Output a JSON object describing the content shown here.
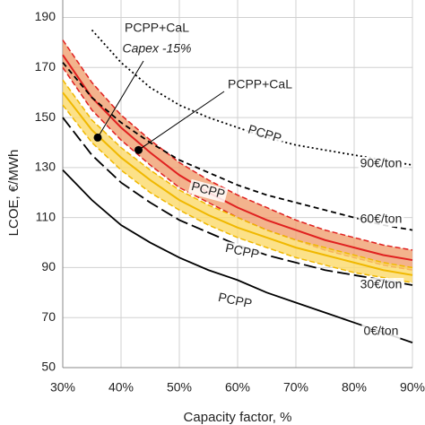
{
  "chart_data": {
    "type": "line",
    "x_label": "Capacity factor, %",
    "y_label": "LCOE, €/MWh",
    "x": [
      30,
      35,
      40,
      45,
      50,
      55,
      60,
      65,
      70,
      75,
      80,
      85,
      90
    ],
    "xlim": [
      30,
      90
    ],
    "xticks": [
      {
        "value": 30,
        "label": "30%"
      },
      {
        "value": 40,
        "label": "40%"
      },
      {
        "value": 50,
        "label": "50%"
      },
      {
        "value": 60,
        "label": "60%"
      },
      {
        "value": 70,
        "label": "70%"
      },
      {
        "value": 80,
        "label": "80%"
      },
      {
        "value": 90,
        "label": "90%"
      }
    ],
    "ylim": [
      50,
      197
    ],
    "yticks": [
      50,
      70,
      90,
      110,
      130,
      150,
      170,
      190
    ],
    "grid": true,
    "bands": [
      {
        "color": "#f0a070",
        "line_color": "#e02020",
        "values": [
          175,
          158,
          146,
          136,
          127,
          120,
          114,
          109,
          105,
          101,
          98,
          95,
          93
        ],
        "upper": [
          181,
          164,
          151,
          141,
          132,
          125,
          119,
          114,
          109,
          105,
          102,
          99,
          97
        ],
        "lower": [
          170,
          153,
          141,
          131,
          122,
          116,
          110,
          105,
          101,
          97,
          94,
          91,
          89
        ]
      },
      {
        "color": "#fbd96a",
        "line_color": "#f0b800",
        "values": [
          160,
          145,
          134,
          125,
          117,
          111,
          106,
          102,
          98,
          95,
          92,
          89,
          87
        ],
        "upper": [
          165,
          149,
          138,
          129,
          121,
          115,
          110,
          105,
          101,
          98,
          95,
          92,
          90
        ],
        "lower": [
          155,
          140,
          129,
          120,
          113,
          107,
          102,
          98,
          94,
          91,
          88,
          86,
          84
        ]
      }
    ],
    "series": [
      {
        "color": "#000000",
        "dash": "2,3",
        "values": [
          null,
          185,
          172,
          162,
          155,
          150,
          146,
          142,
          139,
          137,
          135,
          133,
          131
        ]
      },
      {
        "color": "#000000",
        "dash": "6,4",
        "values": [
          172,
          158,
          148,
          140,
          133,
          128,
          123,
          119,
          116,
          113,
          110,
          107,
          105
        ]
      },
      {
        "color": "#000000",
        "dash": "14,5",
        "values": [
          150,
          135,
          124,
          116,
          109,
          104,
          99,
          95,
          92,
          89,
          87,
          85,
          83
        ]
      },
      {
        "color": "#000000",
        "dash": "none",
        "values": [
          129,
          117,
          107,
          100,
          94,
          89,
          85,
          80,
          76,
          72,
          68,
          64,
          60
        ]
      }
    ],
    "points": [
      {
        "x": 36,
        "y": 142
      },
      {
        "x": 43,
        "y": 137
      }
    ],
    "annotations": [
      "PCPP+CaL",
      "Capex -15%",
      "PCPP+CaL",
      "PCPP",
      "PCPP",
      "PCPP",
      "PCPP",
      "90€/ton",
      "60€/ton",
      "30€/ton",
      "0€/ton"
    ]
  }
}
